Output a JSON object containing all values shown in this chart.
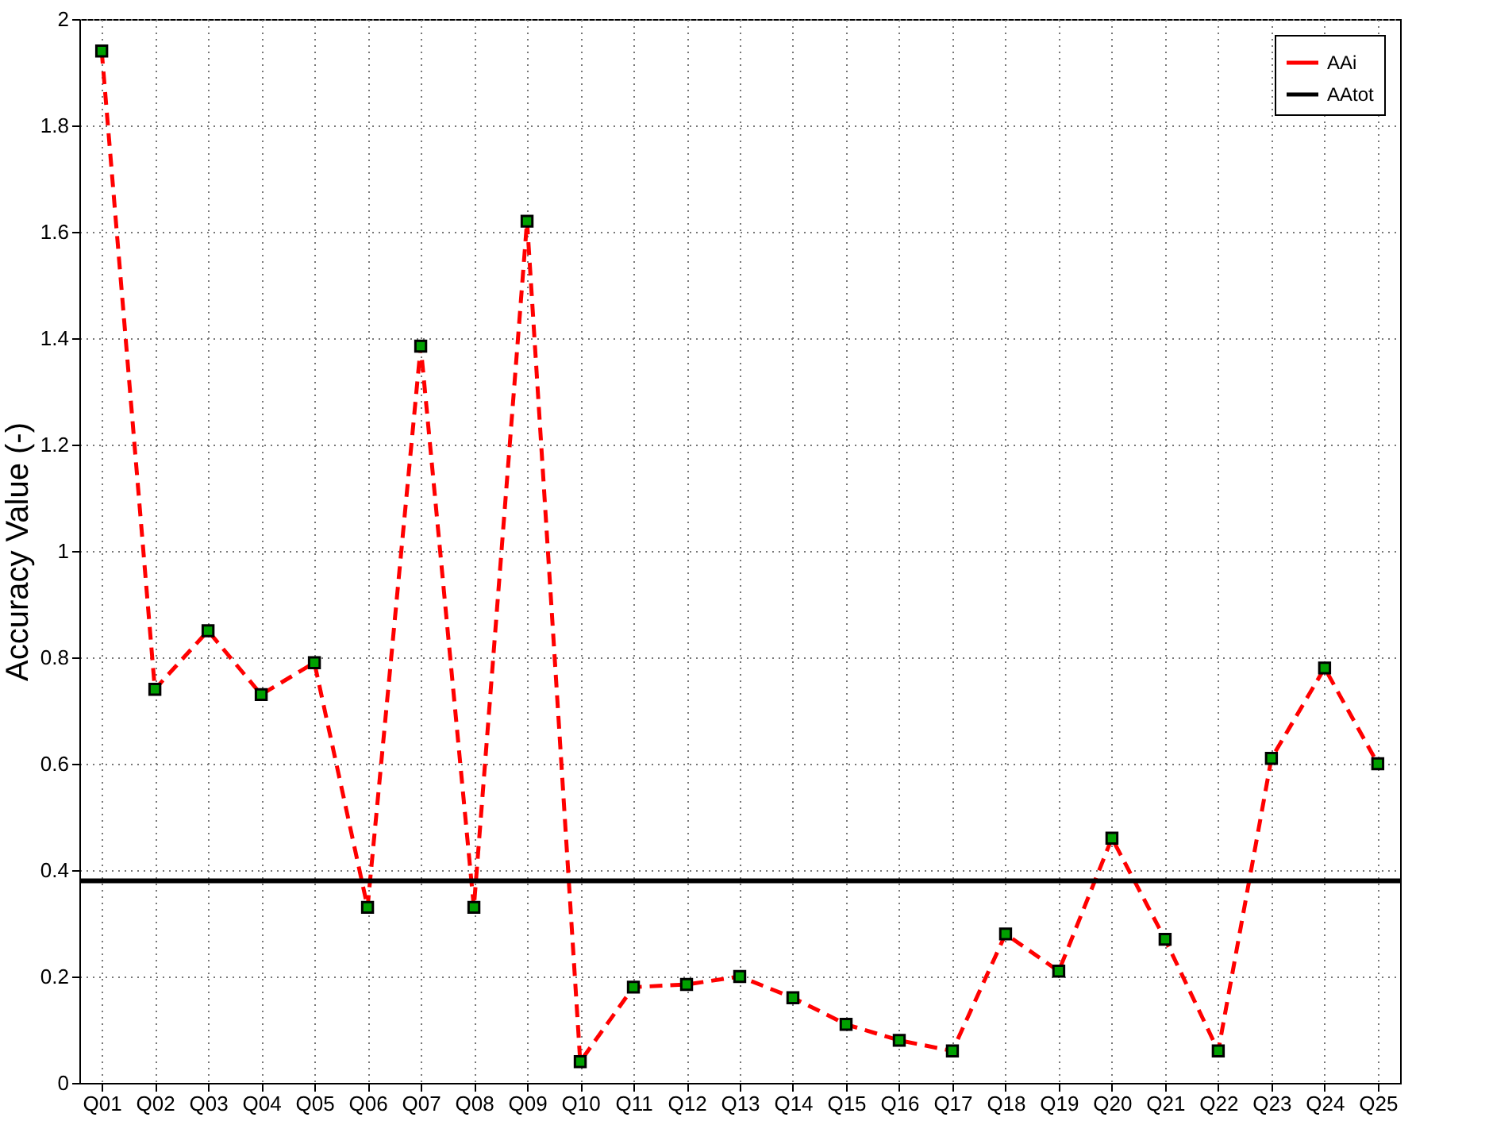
{
  "chart_data": {
    "type": "line",
    "ylabel": "Accuracy Value (-)",
    "categories": [
      "Q01",
      "Q02",
      "Q03",
      "Q04",
      "Q05",
      "Q06",
      "Q07",
      "Q08",
      "Q09",
      "Q10",
      "Q11",
      "Q12",
      "Q13",
      "Q14",
      "Q15",
      "Q16",
      "Q17",
      "Q18",
      "Q19",
      "Q20",
      "Q21",
      "Q22",
      "Q23",
      "Q24",
      "Q25"
    ],
    "series": [
      {
        "name": "AAi",
        "color": "#ff0000",
        "line_style": "dashed",
        "marker": "square",
        "values": [
          1.94,
          0.74,
          0.85,
          0.73,
          0.79,
          0.33,
          1.385,
          0.33,
          1.62,
          0.04,
          0.18,
          0.185,
          0.2,
          0.16,
          0.11,
          0.08,
          0.06,
          0.28,
          0.21,
          0.46,
          0.27,
          0.06,
          0.61,
          0.78,
          0.6
        ]
      }
    ],
    "ref_lines": [
      {
        "axis": "y",
        "value": 0.38,
        "label": "AAtot",
        "color": "#000000",
        "line_style": "solid"
      }
    ],
    "ylim": [
      0,
      2
    ],
    "yticks": [
      0,
      0.2,
      0.4,
      0.6,
      0.8,
      1,
      1.2,
      1.4,
      1.6,
      1.8,
      2
    ],
    "grid": true,
    "legend": "top right"
  }
}
